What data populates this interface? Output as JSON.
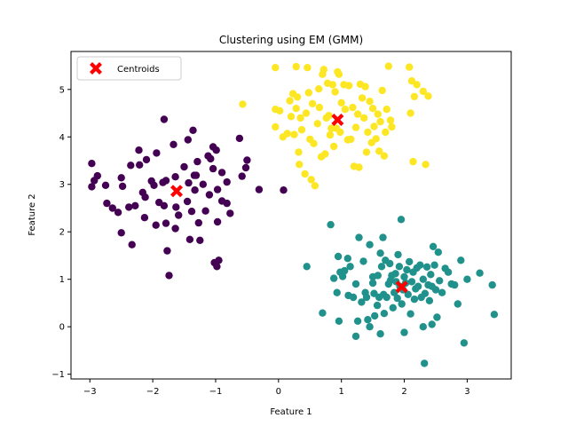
{
  "chart_data": {
    "type": "scatter",
    "title": "Clustering using EM (GMM)",
    "xlabel": "Feature 1",
    "ylabel": "Feature 2",
    "xlim": [
      -3.3,
      3.7
    ],
    "ylim": [
      -1.1,
      5.8
    ],
    "xticks": [
      -3,
      -2,
      -1,
      0,
      1,
      2,
      3
    ],
    "yticks": [
      -1,
      0,
      1,
      2,
      3,
      4,
      5
    ],
    "grid": false,
    "legend_position": "top-left",
    "legend": [
      {
        "label": "Centroids",
        "marker": "X",
        "color": "#ff0000"
      }
    ],
    "series": [
      {
        "color": "#440154",
        "points": [
          [
            -2.97,
            3.44
          ],
          [
            -2.93,
            3.08
          ],
          [
            -2.88,
            3.18
          ],
          [
            -2.97,
            2.95
          ],
          [
            -2.75,
            2.98
          ],
          [
            -2.73,
            2.6
          ],
          [
            -2.64,
            2.5
          ],
          [
            -2.55,
            2.41
          ],
          [
            -2.48,
            2.96
          ],
          [
            -2.5,
            1.98
          ],
          [
            -2.5,
            3.14
          ],
          [
            -2.35,
            3.4
          ],
          [
            -2.38,
            2.52
          ],
          [
            -2.28,
            2.55
          ],
          [
            -2.33,
            1.73
          ],
          [
            -2.21,
            3.41
          ],
          [
            -2.22,
            3.72
          ],
          [
            -2.16,
            2.83
          ],
          [
            -2.12,
            2.73
          ],
          [
            -2.13,
            2.3
          ],
          [
            -2.1,
            3.52
          ],
          [
            -2.02,
            3.07
          ],
          [
            -1.98,
            2.98
          ],
          [
            -1.94,
            3.66
          ],
          [
            -1.9,
            2.62
          ],
          [
            -1.95,
            2.14
          ],
          [
            -1.82,
            4.37
          ],
          [
            -1.84,
            3.04
          ],
          [
            -1.79,
            3.08
          ],
          [
            -1.82,
            2.55
          ],
          [
            -1.79,
            2.18
          ],
          [
            -1.77,
            1.6
          ],
          [
            -1.74,
            1.08
          ],
          [
            -1.67,
            3.84
          ],
          [
            -1.64,
            3.16
          ],
          [
            -1.63,
            2.52
          ],
          [
            -1.64,
            2.07
          ],
          [
            -1.59,
            2.35
          ],
          [
            -1.5,
            3.37
          ],
          [
            -1.44,
            3.94
          ],
          [
            -1.43,
            3.03
          ],
          [
            -1.45,
            2.64
          ],
          [
            -1.41,
            1.84
          ],
          [
            -1.38,
            2.43
          ],
          [
            -1.36,
            4.14
          ],
          [
            -1.34,
            3.19
          ],
          [
            -1.31,
            3.19
          ],
          [
            -1.29,
            3.48
          ],
          [
            -1.33,
            2.88
          ],
          [
            -1.27,
            2.19
          ],
          [
            -1.25,
            1.82
          ],
          [
            -1.2,
            3.0
          ],
          [
            -1.16,
            2.44
          ],
          [
            -1.12,
            3.6
          ],
          [
            -1.1,
            2.78
          ],
          [
            -1.08,
            3.54
          ],
          [
            -1.04,
            3.79
          ],
          [
            -0.99,
            3.72
          ],
          [
            -1.04,
            3.33
          ],
          [
            -0.97,
            2.89
          ],
          [
            -0.97,
            2.21
          ],
          [
            -1.02,
            1.35
          ],
          [
            -0.98,
            1.27
          ],
          [
            -0.95,
            1.4
          ],
          [
            -0.9,
            3.25
          ],
          [
            -0.9,
            2.65
          ],
          [
            -0.82,
            3.05
          ],
          [
            -0.82,
            2.6
          ],
          [
            -0.77,
            2.39
          ],
          [
            -0.62,
            3.97
          ],
          [
            -0.58,
            3.17
          ],
          [
            -0.52,
            3.35
          ],
          [
            -0.5,
            3.51
          ],
          [
            -0.31,
            2.89
          ],
          [
            0.08,
            2.88
          ]
        ]
      },
      {
        "color": "#21918c",
        "points": [
          [
            0.45,
            1.27
          ],
          [
            0.7,
            0.29
          ],
          [
            0.83,
            2.15
          ],
          [
            0.88,
            1.02
          ],
          [
            0.93,
            0.72
          ],
          [
            0.95,
            1.48
          ],
          [
            0.96,
            0.12
          ],
          [
            0.98,
            1.15
          ],
          [
            1.02,
            1.06
          ],
          [
            1.05,
            1.18
          ],
          [
            1.1,
            1.44
          ],
          [
            1.11,
            0.66
          ],
          [
            1.14,
            1.27
          ],
          [
            1.19,
            0.62
          ],
          [
            1.23,
            0.9
          ],
          [
            1.26,
            0.12
          ],
          [
            1.28,
            1.88
          ],
          [
            1.32,
            0.52
          ],
          [
            1.35,
            1.38
          ],
          [
            1.38,
            0.72
          ],
          [
            1.4,
            0.62
          ],
          [
            1.42,
            0.15
          ],
          [
            1.45,
            1.73
          ],
          [
            1.5,
            1.05
          ],
          [
            1.5,
            0.92
          ],
          [
            1.52,
            0.7
          ],
          [
            1.53,
            0.23
          ],
          [
            1.57,
            0.45
          ],
          [
            1.58,
            1.08
          ],
          [
            1.6,
            0.62
          ],
          [
            1.62,
            1.55
          ],
          [
            1.64,
            1.27
          ],
          [
            1.66,
            1.88
          ],
          [
            1.67,
            0.68
          ],
          [
            1.68,
            0.28
          ],
          [
            1.7,
            1.4
          ],
          [
            1.72,
            0.62
          ],
          [
            1.75,
            0.9
          ],
          [
            1.77,
            1.33
          ],
          [
            1.78,
            0.98
          ],
          [
            1.8,
            1.08
          ],
          [
            1.82,
            0.4
          ],
          [
            1.84,
            0.72
          ],
          [
            1.86,
            1.12
          ],
          [
            1.87,
            0.95
          ],
          [
            1.89,
            0.6
          ],
          [
            1.9,
            1.52
          ],
          [
            1.92,
            1.27
          ],
          [
            1.93,
            0.85
          ],
          [
            1.95,
            2.26
          ],
          [
            1.96,
            0.48
          ],
          [
            1.98,
            0.78
          ],
          [
            2.0,
            1.05
          ],
          [
            2.02,
            0.92
          ],
          [
            2.04,
            1.2
          ],
          [
            2.06,
            0.68
          ],
          [
            2.08,
            1.37
          ],
          [
            2.1,
            0.27
          ],
          [
            2.12,
            0.95
          ],
          [
            2.14,
            1.15
          ],
          [
            2.16,
            0.58
          ],
          [
            2.18,
            0.8
          ],
          [
            2.2,
            1.24
          ],
          [
            2.22,
            0.85
          ],
          [
            2.25,
            1.3
          ],
          [
            2.27,
            0.62
          ],
          [
            2.3,
            1.0
          ],
          [
            2.32,
            -0.77
          ],
          [
            2.33,
            0.7
          ],
          [
            2.36,
            1.26
          ],
          [
            2.38,
            0.88
          ],
          [
            2.4,
            0.55
          ],
          [
            2.42,
            1.1
          ],
          [
            2.44,
            0.85
          ],
          [
            2.46,
            1.69
          ],
          [
            2.48,
            1.3
          ],
          [
            2.5,
            0.78
          ],
          [
            2.52,
            0.2
          ],
          [
            2.54,
            1.57
          ],
          [
            2.56,
            0.97
          ],
          [
            2.6,
            0.72
          ],
          [
            2.65,
            1.23
          ],
          [
            2.7,
            1.15
          ],
          [
            2.75,
            0.9
          ],
          [
            2.8,
            0.88
          ],
          [
            2.85,
            0.48
          ],
          [
            2.9,
            1.4
          ],
          [
            2.95,
            -0.34
          ],
          [
            3.0,
            1.0
          ],
          [
            3.2,
            1.13
          ],
          [
            3.4,
            0.88
          ],
          [
            3.43,
            0.26
          ],
          [
            1.23,
            -0.2
          ],
          [
            1.45,
            0.0
          ],
          [
            1.62,
            -0.15
          ],
          [
            2.0,
            -0.12
          ],
          [
            2.3,
            0.0
          ],
          [
            2.44,
            0.05
          ]
        ]
      },
      {
        "color": "#fde725",
        "points": [
          [
            -0.57,
            4.69
          ],
          [
            -0.05,
            5.46
          ],
          [
            -0.05,
            4.58
          ],
          [
            -0.05,
            4.21
          ],
          [
            0.02,
            4.55
          ],
          [
            0.07,
            4.0
          ],
          [
            0.14,
            4.07
          ],
          [
            0.18,
            4.76
          ],
          [
            0.2,
            4.43
          ],
          [
            0.23,
            4.91
          ],
          [
            0.25,
            4.05
          ],
          [
            0.28,
            5.48
          ],
          [
            0.28,
            4.6
          ],
          [
            0.3,
            4.84
          ],
          [
            0.32,
            3.68
          ],
          [
            0.33,
            3.42
          ],
          [
            0.35,
            4.4
          ],
          [
            0.37,
            4.15
          ],
          [
            0.42,
            3.22
          ],
          [
            0.44,
            4.5
          ],
          [
            0.46,
            5.46
          ],
          [
            0.48,
            4.93
          ],
          [
            0.5,
            3.95
          ],
          [
            0.52,
            3.1
          ],
          [
            0.54,
            4.7
          ],
          [
            0.56,
            3.86
          ],
          [
            0.58,
            2.97
          ],
          [
            0.62,
            4.28
          ],
          [
            0.64,
            5.01
          ],
          [
            0.65,
            4.62
          ],
          [
            0.68,
            3.58
          ],
          [
            0.7,
            5.32
          ],
          [
            0.72,
            5.42
          ],
          [
            0.74,
            3.64
          ],
          [
            0.76,
            4.4
          ],
          [
            0.78,
            5.13
          ],
          [
            0.8,
            4.45
          ],
          [
            0.82,
            4.04
          ],
          [
            0.84,
            4.18
          ],
          [
            0.86,
            5.1
          ],
          [
            0.88,
            3.8
          ],
          [
            0.9,
            4.95
          ],
          [
            0.92,
            4.18
          ],
          [
            0.94,
            5.37
          ],
          [
            0.96,
            5.32
          ],
          [
            0.98,
            4.1
          ],
          [
            1.0,
            4.72
          ],
          [
            1.04,
            5.1
          ],
          [
            1.06,
            4.58
          ],
          [
            1.1,
            3.94
          ],
          [
            1.12,
            5.08
          ],
          [
            1.15,
            3.95
          ],
          [
            1.18,
            4.62
          ],
          [
            1.2,
            3.38
          ],
          [
            1.23,
            4.2
          ],
          [
            1.26,
            4.48
          ],
          [
            1.28,
            3.36
          ],
          [
            1.3,
            5.11
          ],
          [
            1.33,
            4.82
          ],
          [
            1.36,
            4.4
          ],
          [
            1.38,
            5.06
          ],
          [
            1.4,
            3.68
          ],
          [
            1.42,
            4.1
          ],
          [
            1.45,
            4.75
          ],
          [
            1.48,
            3.88
          ],
          [
            1.5,
            4.6
          ],
          [
            1.52,
            4.22
          ],
          [
            1.55,
            3.96
          ],
          [
            1.58,
            4.48
          ],
          [
            1.6,
            3.7
          ],
          [
            1.62,
            4.32
          ],
          [
            1.65,
            4.98
          ],
          [
            1.68,
            3.6
          ],
          [
            1.7,
            4.1
          ],
          [
            1.72,
            4.58
          ],
          [
            1.75,
            5.49
          ],
          [
            1.78,
            4.35
          ],
          [
            1.8,
            4.21
          ],
          [
            2.08,
            5.47
          ],
          [
            2.1,
            4.5
          ],
          [
            2.12,
            5.18
          ],
          [
            2.14,
            3.48
          ],
          [
            2.16,
            4.85
          ],
          [
            2.2,
            5.1
          ],
          [
            2.3,
            4.96
          ],
          [
            2.34,
            3.42
          ],
          [
            2.38,
            4.86
          ]
        ]
      }
    ],
    "centroids": [
      [
        -1.62,
        2.86
      ],
      [
        1.96,
        0.84
      ],
      [
        0.94,
        4.36
      ]
    ]
  }
}
